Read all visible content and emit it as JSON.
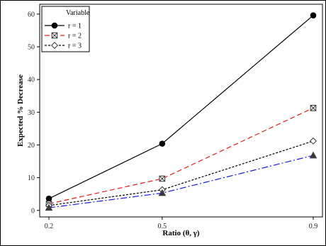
{
  "chart_data": {
    "type": "line",
    "title": "",
    "xlabel": "Ratio (θ, γ)",
    "ylabel": "Expected % Decrease",
    "x": [
      0.2,
      0.5,
      0.9
    ],
    "x_ticks": [
      "0.2",
      "0.5",
      "0.9"
    ],
    "y_ticks": [
      0,
      10,
      20,
      30,
      40,
      50,
      60
    ],
    "ylim": [
      -2,
      63
    ],
    "grid": false,
    "legend": {
      "title": "Variable",
      "placement": "top-left"
    },
    "series": [
      {
        "name": "r = 1",
        "values": [
          3.6,
          20.4,
          59.6
        ],
        "color": "#000000",
        "marker": "circle",
        "dash": "solid"
      },
      {
        "name": "r = 2",
        "values": [
          2.0,
          9.7,
          31.3
        ],
        "color": "#e0201b",
        "marker": "crossed-square",
        "dash": "dashed"
      },
      {
        "name": "r = 3",
        "values": [
          1.5,
          6.3,
          21.2
        ],
        "color": "#000000",
        "marker": "diamond",
        "dash": "dotted"
      },
      {
        "name": "",
        "values": [
          0.8,
          5.3,
          16.8
        ],
        "color": "#1a1adf",
        "marker": "triangle",
        "dash": "dash-dot"
      }
    ]
  }
}
